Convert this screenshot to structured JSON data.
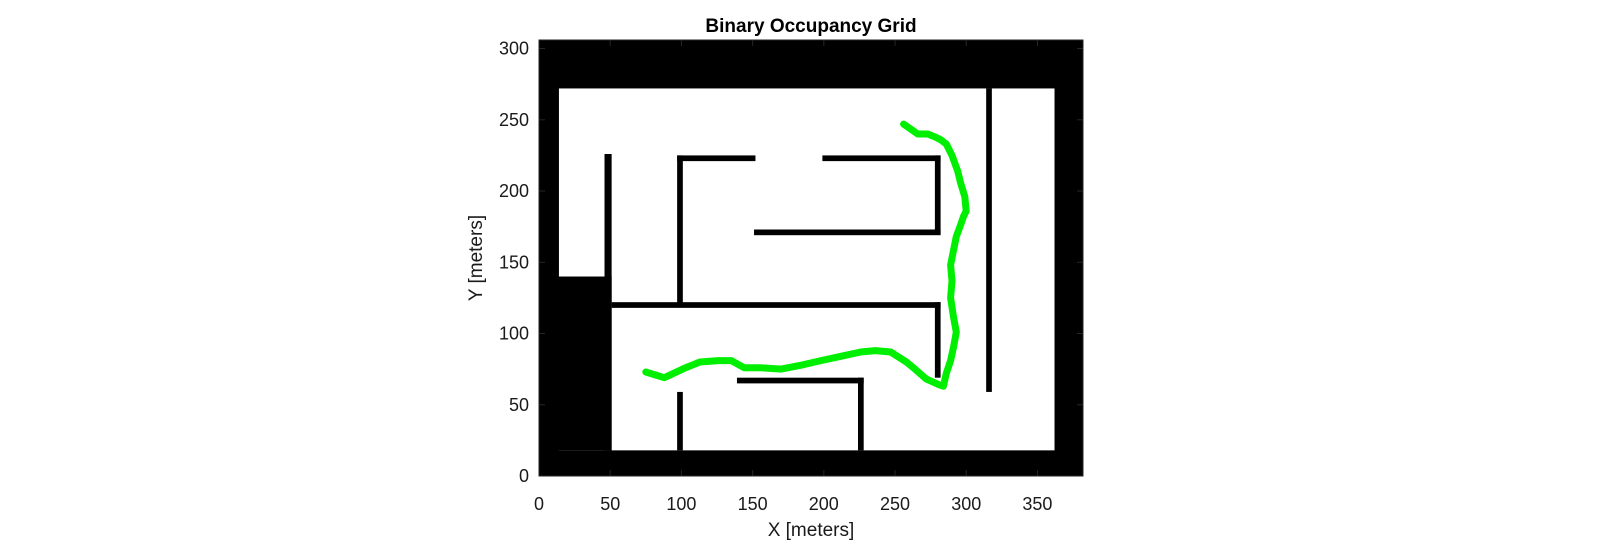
{
  "chart_data": {
    "type": "occupancy_grid",
    "title": "Binary Occupancy Grid",
    "xlabel": "X [meters]",
    "ylabel": "Y [meters]",
    "xlim": [
      0,
      382
    ],
    "ylim": [
      0,
      306
    ],
    "xticks": [
      0,
      50,
      100,
      150,
      200,
      250,
      300,
      350
    ],
    "yticks": [
      0,
      50,
      100,
      150,
      200,
      250,
      300
    ],
    "colors": {
      "occupied": "#000000",
      "free": "#ffffff",
      "path": "#00ee00"
    },
    "occupied_regions": [
      {
        "name": "outer-border-top",
        "x0": 0,
        "y0": 272,
        "x1": 382,
        "y1": 306
      },
      {
        "name": "outer-border-bottom",
        "x0": 0,
        "y0": 0,
        "x1": 382,
        "y1": 18
      },
      {
        "name": "outer-border-left",
        "x0": 0,
        "y0": 0,
        "x1": 14,
        "y1": 306
      },
      {
        "name": "outer-border-right",
        "x0": 362,
        "y0": 0,
        "x1": 382,
        "y1": 306
      },
      {
        "name": "left-solid-block",
        "x0": 0,
        "y0": 18,
        "x1": 51,
        "y1": 140
      },
      {
        "name": "left-vertical-wall",
        "x0": 46,
        "y0": 18,
        "x1": 51,
        "y1": 226
      },
      {
        "name": "wall-top-left",
        "x0": 97,
        "y0": 221,
        "x1": 152,
        "y1": 225
      },
      {
        "name": "wall-top-right",
        "x0": 199,
        "y0": 221,
        "x1": 282,
        "y1": 225
      },
      {
        "name": "wall-inner-vertical-left",
        "x0": 97,
        "y0": 119,
        "x1": 101,
        "y1": 225
      },
      {
        "name": "wall-inner-vertical-right",
        "x0": 278,
        "y0": 170,
        "x1": 282,
        "y1": 225
      },
      {
        "name": "wall-inner-horizontal",
        "x0": 151,
        "y0": 169,
        "x1": 282,
        "y1": 173
      },
      {
        "name": "wall-middle-horizontal",
        "x0": 51,
        "y0": 118,
        "x1": 282,
        "y1": 122
      },
      {
        "name": "wall-middle-vertical-right",
        "x0": 278,
        "y0": 69,
        "x1": 282,
        "y1": 122
      },
      {
        "name": "wall-right-vertical",
        "x0": 314,
        "y0": 59,
        "x1": 318,
        "y1": 272
      },
      {
        "name": "wall-bottom-left-stub",
        "x0": 97,
        "y0": 18,
        "x1": 101,
        "y1": 59
      },
      {
        "name": "wall-bottom-horizontal",
        "x0": 139,
        "y0": 65,
        "x1": 228,
        "y1": 69
      },
      {
        "name": "wall-bottom-vertical",
        "x0": 224,
        "y0": 18,
        "x1": 228,
        "y1": 69
      }
    ],
    "path": {
      "name": "planned-path",
      "x": [
        75,
        88,
        103,
        113,
        126,
        135,
        144,
        155,
        170,
        185,
        198,
        212,
        226,
        236,
        247,
        258,
        264,
        272,
        281,
        284,
        286,
        289,
        291,
        293,
        291,
        289,
        290,
        289,
        291,
        293,
        296,
        298,
        300,
        299,
        296,
        294,
        290,
        286,
        282,
        278,
        273,
        266,
        256
      ],
      "y": [
        73,
        69,
        76,
        80,
        81,
        81,
        76,
        76,
        75,
        78,
        81,
        84,
        87,
        88,
        87,
        80,
        75,
        68,
        64,
        63,
        72,
        81,
        90,
        101,
        112,
        125,
        137,
        148,
        158,
        168,
        176,
        182,
        186,
        196,
        206,
        214,
        225,
        233,
        236,
        238,
        240,
        240,
        247
      ]
    }
  }
}
